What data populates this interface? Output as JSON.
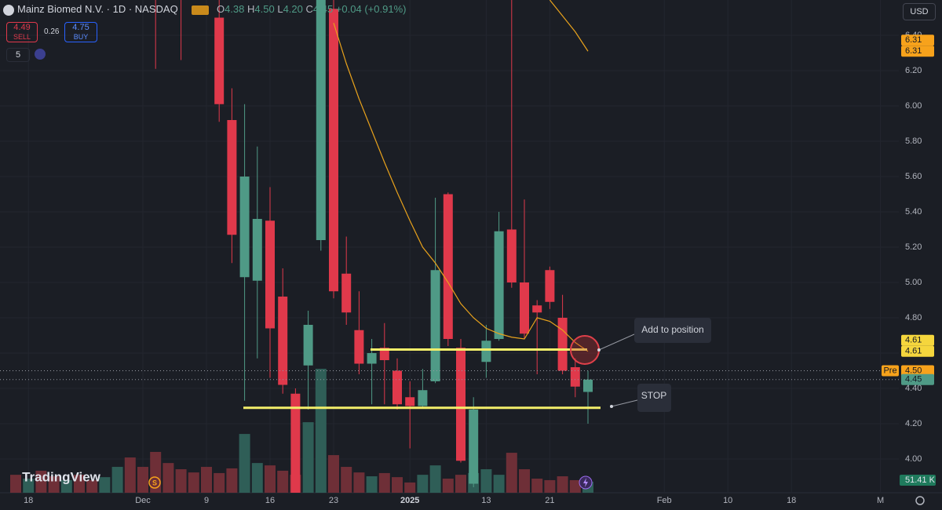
{
  "header": {
    "title": "Mainz Biomed N.V. · 1D · NASDAQ",
    "ohlc": [
      "O",
      "4.38",
      "H",
      "4.50",
      "L",
      "4.20",
      "C",
      "4.45"
    ],
    "change": "+0.04 (+0.91%)",
    "currency": "USD"
  },
  "trade": {
    "sell_price": "4.49",
    "sell": "SELL",
    "spread": "0.26",
    "buy_price": "4.75",
    "buy": "BUY",
    "indicators": "5"
  },
  "watermark": "TradingView",
  "chart_data": {
    "type": "candlestick",
    "categories": [
      null,
      "18",
      null,
      null,
      null,
      null,
      null,
      null,
      null,
      null,
      "Dec",
      null,
      null,
      null,
      null,
      "9",
      null,
      null,
      null,
      null,
      "16",
      null,
      null,
      null,
      null,
      "23",
      null,
      null,
      null,
      null,
      null,
      "2025",
      null,
      null,
      null,
      null,
      null,
      "13",
      null,
      null,
      null,
      null,
      "21",
      null,
      null,
      null,
      null,
      null,
      null,
      null,
      null,
      "Feb",
      null,
      null,
      null,
      null,
      "10",
      null,
      null,
      null,
      null,
      "18",
      null,
      null,
      null,
      null,
      null,
      null,
      "M"
    ],
    "open": [
      null,
      null,
      null,
      null,
      null,
      null,
      null,
      null,
      null,
      null,
      null,
      6.8,
      null,
      6.9,
      null,
      null,
      6.5,
      5.92,
      5.03,
      5.01,
      5.35,
      4.92,
      4.37,
      4.53,
      5.24,
      6.55,
      5.05,
      4.73,
      4.54,
      4.63,
      4.5,
      4.35,
      4.3,
      4.44,
      5.5,
      4.63,
      3.86,
      4.55,
      4.68,
      5.3,
      5,
      4.87,
      5.07,
      4.8,
      4.52,
      4.38,
      null,
      null,
      null,
      null,
      null,
      null,
      null,
      null,
      null,
      null,
      null,
      null,
      null,
      null,
      null,
      null,
      null,
      null,
      null,
      null,
      null,
      null,
      null
    ],
    "high": [
      null,
      null,
      null,
      null,
      null,
      null,
      null,
      null,
      null,
      null,
      null,
      7,
      null,
      7,
      null,
      null,
      6.7,
      6.1,
      6.01,
      5.77,
      5.54,
      5.08,
      4.4,
      4.84,
      7,
      6.7,
      5.26,
      4.95,
      4.68,
      4.77,
      4.57,
      4.44,
      4.51,
      5.48,
      5.51,
      4.68,
      4.35,
      4.76,
      5.4,
      6.7,
      5.47,
      4.9,
      5.09,
      4.93,
      4.57,
      4.5,
      null,
      null,
      null,
      null,
      null,
      null,
      null,
      null,
      null,
      null,
      null,
      null,
      null,
      null,
      null,
      null,
      null,
      null,
      null,
      null,
      null,
      null,
      null
    ],
    "low": [
      null,
      null,
      null,
      null,
      null,
      null,
      null,
      null,
      null,
      null,
      null,
      6.21,
      null,
      6.26,
      null,
      null,
      5.91,
      5.11,
      4.33,
      4.57,
      4.46,
      4.37,
      3.7,
      4.28,
      5.18,
      4.91,
      4.76,
      4.48,
      4.31,
      4.31,
      4.28,
      4.06,
      4.29,
      4.43,
      4.64,
      3.98,
      3.84,
      4.46,
      4.67,
      4.97,
      4.68,
      4.48,
      4.85,
      4.48,
      4.35,
      4.2,
      null,
      null,
      null,
      null,
      null,
      null,
      null,
      null,
      null,
      null,
      null,
      null,
      null,
      null,
      null,
      null,
      null,
      null,
      null,
      null,
      null,
      null,
      null
    ],
    "close": [
      null,
      null,
      null,
      null,
      null,
      null,
      null,
      null,
      null,
      null,
      null,
      6.7,
      null,
      6.8,
      null,
      null,
      6.01,
      5.27,
      5.6,
      5.36,
      4.74,
      4.42,
      3.78,
      4.76,
      6.8,
      4.95,
      4.83,
      4.54,
      4.6,
      4.56,
      4.31,
      4.3,
      4.39,
      5.07,
      4.68,
      3.99,
      4.28,
      4.67,
      5.29,
      5,
      4.71,
      4.83,
      4.89,
      4.5,
      4.41,
      4.45,
      null,
      null,
      null,
      null,
      null,
      null,
      null,
      null,
      null,
      null,
      null,
      null,
      null,
      null,
      null,
      null,
      null,
      null,
      null,
      null,
      null,
      null,
      null
    ],
    "up_color": "#4f9a86",
    "down_color": "#e0394b",
    "volume": {
      "values": [
        84,
        66,
        103,
        77,
        59,
        84,
        59,
        73,
        121,
        165,
        121,
        191,
        139,
        110,
        95,
        121,
        92,
        114,
        275,
        139,
        128,
        103,
        84,
        330,
        580,
        176,
        121,
        95,
        77,
        92,
        73,
        48,
        84,
        128,
        66,
        84,
        92,
        110,
        84,
        187,
        110,
        66,
        59,
        77,
        59,
        51.41,
        null,
        null,
        null,
        null,
        null,
        null,
        null,
        null,
        null,
        null,
        null,
        null,
        null,
        null,
        null,
        null,
        null,
        null,
        null,
        null,
        null,
        null,
        null
      ],
      "value_labels": [
        null,
        null,
        null,
        null,
        null,
        null,
        null,
        null,
        null,
        null,
        null,
        null,
        null,
        null,
        null,
        null,
        null,
        null,
        null,
        null,
        null,
        null,
        null,
        null,
        null,
        null,
        null,
        null,
        null,
        null,
        null,
        null,
        null,
        null,
        null,
        null,
        null,
        null,
        null,
        null,
        null,
        null,
        null,
        null,
        null,
        "51.41 K",
        null,
        null,
        null,
        null,
        null,
        null,
        null,
        null,
        null,
        null,
        null,
        null,
        null,
        null,
        null,
        null,
        null,
        null,
        null,
        null,
        null,
        null,
        null
      ],
      "colors": [
        "#6e2f37",
        "#2f5e57",
        "#6e2f37",
        "#6e2f37",
        "#2f5e57",
        "#6e2f37",
        "#6e2f37",
        "#2f5e57",
        "#2f5e57",
        "#6e2f37",
        "#6e2f37",
        "#6e2f37",
        "#6e2f37",
        "#6e2f37",
        "#6e2f37",
        "#6e2f37",
        "#6e2f37",
        "#6e2f37",
        "#2f5e57",
        "#2f5e57",
        "#6e2f37",
        "#6e2f37",
        "#6e2f37",
        "#2f5e57",
        "#2f5e57",
        "#6e2f37",
        "#6e2f37",
        "#6e2f37",
        "#2f5e57",
        "#6e2f37",
        "#6e2f37",
        "#6e2f37",
        "#2f5e57",
        "#2f5e57",
        "#6e2f37",
        "#6e2f37",
        "#2f5e57",
        "#2f5e57",
        "#2f5e57",
        "#6e2f37",
        "#6e2f37",
        "#6e2f37",
        "#6e2f37",
        "#6e2f37",
        "#6e2f37",
        "#2f5e57",
        null,
        null,
        null,
        null,
        null,
        null,
        null,
        null,
        null,
        null,
        null,
        null,
        null,
        null,
        null,
        null,
        null,
        null,
        null,
        null,
        null,
        null,
        null
      ],
      "badge_color": "#1f7a5c"
    },
    "series": [
      {
        "color": "#e8a21c",
        "values": [
          null,
          null,
          null,
          null,
          null,
          null,
          null,
          null,
          null,
          null,
          null,
          null,
          null,
          null,
          null,
          null,
          null,
          null,
          null,
          null,
          null,
          null,
          null,
          null,
          null,
          6.47,
          6.24,
          6.04,
          5.86,
          5.68,
          5.51,
          5.35,
          5.2,
          5.11,
          5,
          4.88,
          4.8,
          4.74,
          4.71,
          4.69,
          4.68,
          4.8,
          4.78,
          4.73,
          4.66,
          4.61,
          null,
          null,
          null,
          null,
          null,
          null,
          null,
          null,
          null,
          null,
          null,
          null,
          null,
          null,
          null,
          null,
          null,
          null,
          null,
          null,
          null,
          null,
          null
        ]
      },
      {
        "color": "#e8a21c",
        "values": [
          null,
          null,
          null,
          null,
          null,
          null,
          null,
          null,
          null,
          null,
          null,
          null,
          null,
          null,
          null,
          null,
          null,
          null,
          null,
          null,
          null,
          null,
          null,
          null,
          null,
          null,
          null,
          null,
          null,
          null,
          null,
          null,
          null,
          null,
          null,
          null,
          null,
          null,
          null,
          null,
          null,
          null,
          6.6,
          6.51,
          6.42,
          6.31,
          null,
          null,
          null,
          null,
          null,
          null,
          null,
          null,
          null,
          null,
          null,
          null,
          null,
          null,
          null,
          null,
          null,
          null,
          null,
          null,
          null,
          null,
          null
        ]
      }
    ],
    "ylim": [
      3.8,
      6.6
    ],
    "yticks": [
      {
        "value": 4,
        "label": "4.00"
      },
      {
        "value": 4.2,
        "label": "4.20"
      },
      {
        "value": 4.4,
        "label": "4.40"
      },
      {
        "value": 4.6,
        "label": "4.60"
      },
      {
        "value": 4.8,
        "label": "4.80"
      },
      {
        "value": 5,
        "label": "5.00"
      },
      {
        "value": 5.2,
        "label": "5.20"
      },
      {
        "value": 5.4,
        "label": "5.40"
      },
      {
        "value": 5.6,
        "label": "5.60"
      },
      {
        "value": 5.8,
        "label": "5.80"
      },
      {
        "value": 6,
        "label": "6.00"
      },
      {
        "value": 6.2,
        "label": "6.20"
      },
      {
        "value": 6.4,
        "label": "6.40"
      }
    ],
    "grid": true,
    "hlines": [
      {
        "value": 4.62,
        "color": "#f3ee6a"
      },
      {
        "value": 4.29,
        "color": "#f3ee6a"
      }
    ],
    "price_badges": [
      {
        "value": 6.31,
        "color": "#f7a21b"
      },
      {
        "value": 6.31,
        "color": "#f7a21b"
      },
      {
        "value": 4.61,
        "color": "#f5d63d"
      },
      {
        "value": 4.61,
        "color": "#f5d63d"
      },
      {
        "value": {
          "value": 4.5,
          "label": "4.50"
        },
        "tag": "Pre",
        "color": "#f7a21b",
        "line": "dotted"
      },
      {
        "value": 4.45,
        "color": "#4f9a86",
        "line": "dotted"
      }
    ],
    "callouts": [
      {
        "text": "Add to position"
      },
      {
        "text": "STOP"
      }
    ]
  }
}
